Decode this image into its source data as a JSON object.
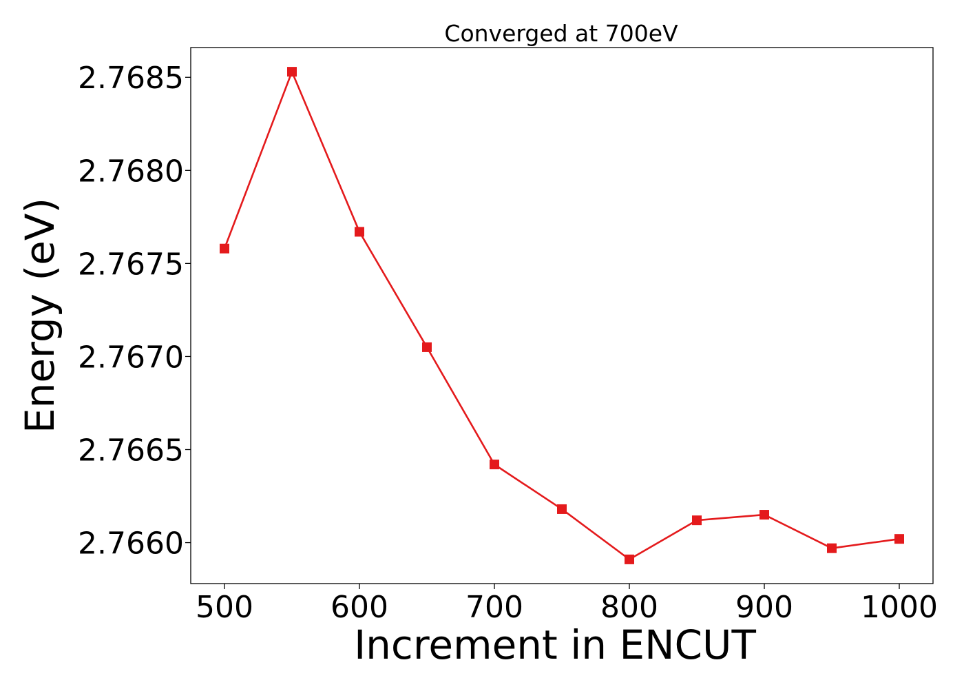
{
  "chart_data": {
    "type": "line",
    "title": "Converged at 700eV",
    "xlabel": "Increment in ENCUT",
    "ylabel": "Energy (eV)",
    "x": [
      500,
      550,
      600,
      650,
      700,
      750,
      800,
      850,
      900,
      950,
      1000
    ],
    "series": [
      {
        "values": [
          2.76758,
          2.76853,
          2.76767,
          2.76705,
          2.76642,
          2.76618,
          2.76591,
          2.76612,
          2.76615,
          2.76597,
          2.76602
        ],
        "color": "#e41a1c",
        "marker": "square"
      }
    ],
    "xlim": [
      475,
      1025
    ],
    "ylim": [
      2.76578,
      2.76866
    ],
    "xticks": [
      500,
      600,
      700,
      800,
      900,
      1000
    ],
    "xtick_labels": [
      "500",
      "600",
      "700",
      "800",
      "900",
      "1000"
    ],
    "yticks": [
      2.766,
      2.7665,
      2.767,
      2.7675,
      2.768,
      2.7685
    ],
    "ytick_labels": [
      "2.7660",
      "2.7665",
      "2.7670",
      "2.7675",
      "2.7680",
      "2.7685"
    ],
    "grid": false,
    "legend": false
  }
}
